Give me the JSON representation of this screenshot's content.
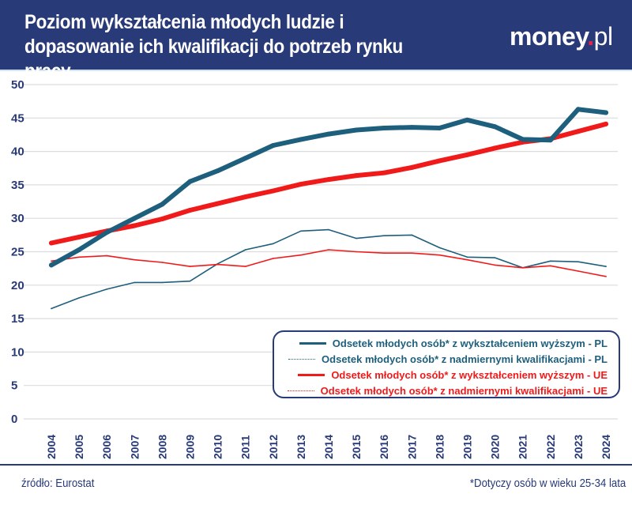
{
  "header": {
    "title": "Poziom wykształcenia młodych ludzie i dopasowanie ich kwalifikacji do potrzeb rynku pracy",
    "logo": "money.pl",
    "logo_main": "money",
    "logo_dot": ".",
    "logo_tld": "pl",
    "background": "#283a78"
  },
  "footer": {
    "source": "źródło: Eurostat",
    "note": "*Dotyczy osób w wieku 25-34 lata"
  },
  "chart_data": {
    "type": "line",
    "title": "Poziom wykształcenia młodych ludzie i dopasowanie ich kwalifikacji do potrzeb rynku pracy",
    "xlabel": "",
    "ylabel": "",
    "ylim": [
      0,
      50
    ],
    "yticks": [
      "0",
      "5",
      "10",
      "15",
      "20",
      "25",
      "30",
      "35",
      "40",
      "45",
      "50"
    ],
    "grid": true,
    "legend_position": "bottom-right",
    "categories": [
      "2004",
      "2005",
      "2006",
      "2007",
      "2008",
      "2009",
      "2010",
      "2011",
      "2012",
      "2013",
      "2014",
      "2015",
      "2016",
      "2017",
      "2018",
      "2019",
      "2020",
      "2021",
      "2022",
      "2023",
      "2024"
    ],
    "series": [
      {
        "name": "Odsetek młodych osób* z wykształceniem wyższym - PL",
        "color": "#1d5f7c",
        "style": "thick",
        "values": [
          23.0,
          25.3,
          27.9,
          30.0,
          32.1,
          35.5,
          37.1,
          39.0,
          40.9,
          41.8,
          42.6,
          43.2,
          43.5,
          43.6,
          43.5,
          44.7,
          43.7,
          41.8,
          41.7,
          46.3,
          45.8
        ]
      },
      {
        "name": "Odsetek młodych osób* z nadmiernymi kwalifikacjami - PL",
        "color": "#1d5f7c",
        "style": "thin",
        "values": [
          16.5,
          18.1,
          19.4,
          20.4,
          20.4,
          20.6,
          23.2,
          25.3,
          26.2,
          28.1,
          28.3,
          27.0,
          27.4,
          27.5,
          25.6,
          24.2,
          24.1,
          22.6,
          23.6,
          23.5,
          22.8
        ]
      },
      {
        "name": "Odsetek młodych osób* z wykształceniem wyższym - UE",
        "color": "#f01a1a",
        "style": "thick",
        "values": [
          26.3,
          27.2,
          28.1,
          28.9,
          29.9,
          31.2,
          32.2,
          33.2,
          34.1,
          35.1,
          35.8,
          36.4,
          36.8,
          37.6,
          38.6,
          39.5,
          40.5,
          41.4,
          41.9,
          43.0,
          44.1
        ]
      },
      {
        "name": "Odsetek młodych osób* z nadmiernymi kwalifikacjami - UE",
        "color": "#f01a1a",
        "style": "thin",
        "values": [
          23.6,
          24.2,
          24.4,
          23.8,
          23.4,
          22.8,
          23.1,
          22.8,
          24.0,
          24.5,
          25.3,
          25.0,
          24.8,
          24.8,
          24.5,
          23.8,
          23.0,
          22.6,
          22.9,
          22.1,
          21.3
        ]
      }
    ]
  }
}
